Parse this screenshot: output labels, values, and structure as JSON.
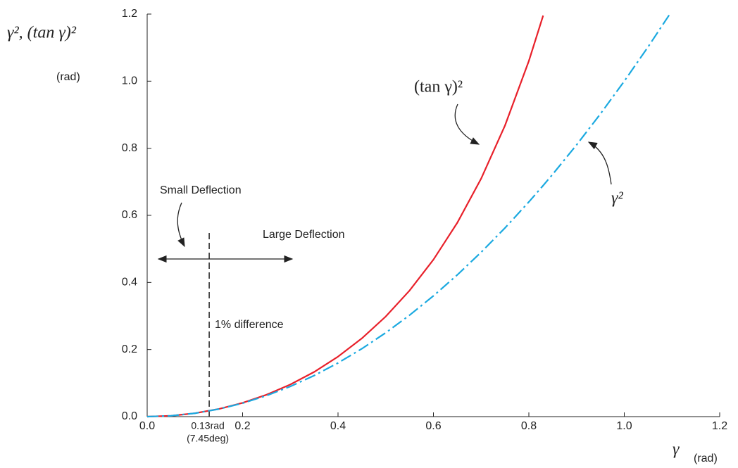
{
  "chart_data": {
    "type": "line",
    "y_title": "γ², (tan γ)²",
    "y_unit": "(rad)",
    "x_title": "γ",
    "x_unit": "(rad)",
    "x": [
      0,
      0.05,
      0.1,
      0.15,
      0.2,
      0.25,
      0.3,
      0.35,
      0.4,
      0.45,
      0.5,
      0.55,
      0.6,
      0.65,
      0.7,
      0.75,
      0.8,
      0.83,
      0.85,
      0.9,
      0.95,
      1.0,
      1.05,
      1.095
    ],
    "series": [
      {
        "name": "(tan γ)²",
        "color": "#e8202a",
        "dash": "solid",
        "values": [
          0,
          0.0025,
          0.0101,
          0.0228,
          0.0411,
          0.0652,
          0.0957,
          0.1332,
          0.1788,
          0.2333,
          0.2984,
          0.3759,
          0.468,
          0.5779,
          0.7095,
          0.8679,
          1.0602,
          1.1955,
          null,
          null,
          null,
          null,
          null,
          null
        ]
      },
      {
        "name": "γ²",
        "color": "#1aa9e0",
        "dash": "dashdot",
        "values": [
          0,
          0.0025,
          0.01,
          0.0225,
          0.04,
          0.0625,
          0.09,
          0.1225,
          0.16,
          0.2025,
          0.25,
          0.3025,
          0.36,
          0.4225,
          0.49,
          0.5625,
          0.64,
          0.6889,
          0.7225,
          0.81,
          0.9025,
          1.0,
          1.1025,
          1.199
        ]
      }
    ],
    "xlim": [
      0,
      1.2
    ],
    "ylim": [
      0,
      1.2
    ],
    "xticks": [
      {
        "value": 0,
        "label": "0.0"
      },
      {
        "value": 0.2,
        "label": "0.2"
      },
      {
        "value": 0.4,
        "label": "0.4"
      },
      {
        "value": 0.6,
        "label": "0.6"
      },
      {
        "value": 0.8,
        "label": "0.8"
      },
      {
        "value": 1.0,
        "label": "1.0"
      },
      {
        "value": 1.2,
        "label": "1.2"
      }
    ],
    "yticks": [
      {
        "value": 0,
        "label": "0.0"
      },
      {
        "value": 0.2,
        "label": "0.2"
      },
      {
        "value": 0.4,
        "label": "0.4"
      },
      {
        "value": 0.6,
        "label": "0.6"
      },
      {
        "value": 0.8,
        "label": "0.8"
      },
      {
        "value": 1.0,
        "label": "1.0"
      },
      {
        "value": 1.2,
        "label": "1.2"
      }
    ],
    "threshold": {
      "value": 0.13,
      "label": "0.13rad"
    },
    "threshold_deg": "(7.45deg)",
    "annotations": [
      "Small Deflection",
      "Large Deflection",
      "1% difference"
    ]
  }
}
